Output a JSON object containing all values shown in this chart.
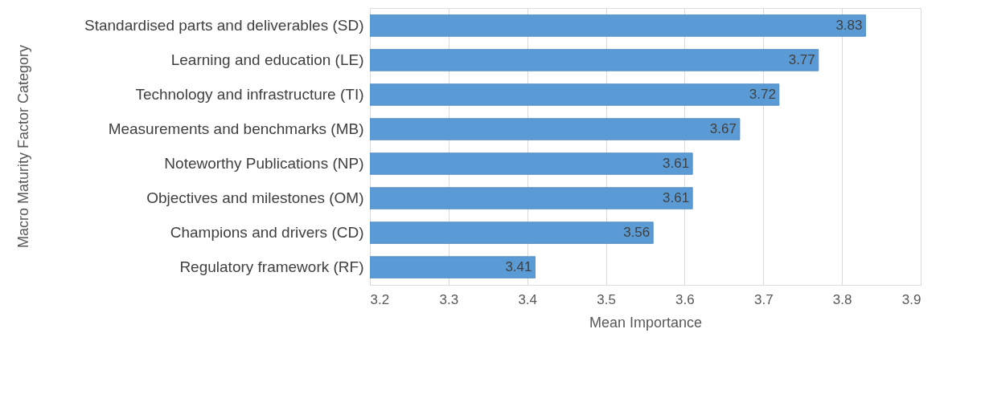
{
  "chart_data": {
    "type": "bar",
    "orientation": "horizontal",
    "xlabel": "Mean Importance",
    "ylabel": "Macro Maturity Factor Category",
    "categories": [
      "Standardised parts and deliverables (SD)",
      "Learning and education (LE)",
      "Technology and infrastructure (TI)",
      "Measurements and benchmarks (MB)",
      "Noteworthy Publications (NP)",
      "Objectives and milestones (OM)",
      "Champions and drivers (CD)",
      "Regulatory framework (RF)"
    ],
    "values": [
      3.83,
      3.77,
      3.72,
      3.67,
      3.61,
      3.61,
      3.56,
      3.41
    ],
    "color": "#5b9bd5",
    "xlim": [
      3.2,
      3.9
    ],
    "xticks": [
      3.2,
      3.3,
      3.4,
      3.5,
      3.6,
      3.7,
      3.8,
      3.9
    ],
    "grid": "x",
    "data_labels": true
  }
}
